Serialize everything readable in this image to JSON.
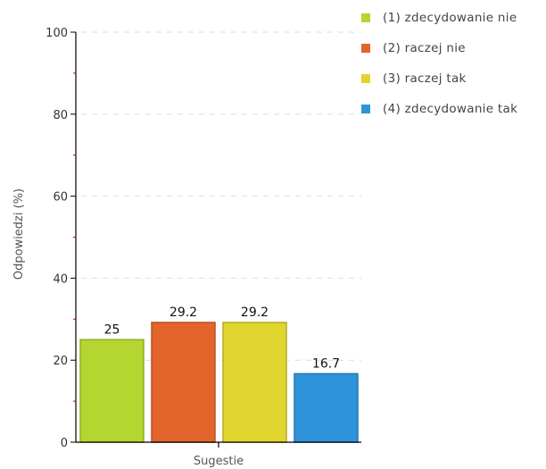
{
  "chart_data": {
    "type": "bar",
    "title": "",
    "xlabel": "Sugestie",
    "ylabel": "Odpowiedzi (%)",
    "ylim": [
      0,
      100
    ],
    "yticks": [
      "0",
      "20",
      "40",
      "60",
      "80",
      "100"
    ],
    "grid": true,
    "legend_position": "top-right",
    "series": [
      {
        "name": "(1) zdecydowanie nie",
        "value": 25,
        "label": "25",
        "color": "#b5d630"
      },
      {
        "name": "(2) raczej nie",
        "value": 29.2,
        "label": "29.2",
        "color": "#e3642a"
      },
      {
        "name": "(3) raczej tak",
        "value": 29.2,
        "label": "29.2",
        "color": "#e1d52f"
      },
      {
        "name": "(4) zdecydowanie tak",
        "value": 16.7,
        "label": "16.7",
        "color": "#2e93d9"
      }
    ]
  }
}
